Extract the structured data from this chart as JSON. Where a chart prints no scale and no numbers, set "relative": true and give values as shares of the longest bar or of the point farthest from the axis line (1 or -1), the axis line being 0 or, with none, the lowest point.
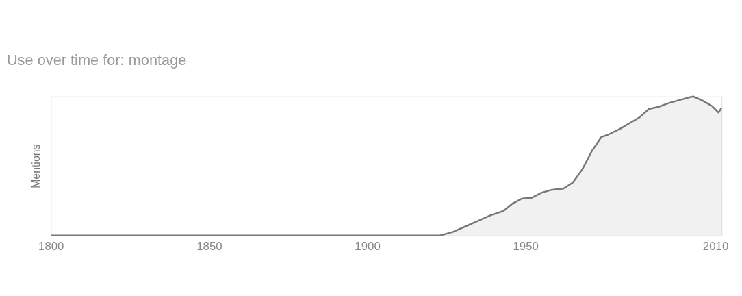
{
  "chart_data": {
    "type": "area",
    "title": "Use over time for: montage",
    "ylabel": "Mentions",
    "relative": true,
    "grid": false,
    "xlim": [
      1800,
      2012
    ],
    "xticks": [
      1800,
      1850,
      1900,
      1950,
      2010
    ],
    "x": [
      1800,
      1850,
      1900,
      1923,
      1927,
      1931,
      1935,
      1939,
      1943,
      1946,
      1949,
      1952,
      1955,
      1958,
      1962,
      1965,
      1968,
      1971,
      1974,
      1976,
      1980,
      1983,
      1986,
      1989,
      1992,
      1995,
      1998,
      2002,
      2003,
      2006,
      2009,
      2011,
      2012
    ],
    "series": [
      {
        "color": "#777777",
        "values": [
          0,
          0,
          0,
          0,
          0.025,
          0.065,
          0.105,
          0.146,
          0.176,
          0.231,
          0.266,
          0.271,
          0.307,
          0.327,
          0.337,
          0.382,
          0.477,
          0.608,
          0.709,
          0.724,
          0.769,
          0.809,
          0.849,
          0.91,
          0.925,
          0.95,
          0.97,
          0.995,
          1.0,
          0.97,
          0.93,
          0.884,
          0.92
        ]
      }
    ]
  }
}
